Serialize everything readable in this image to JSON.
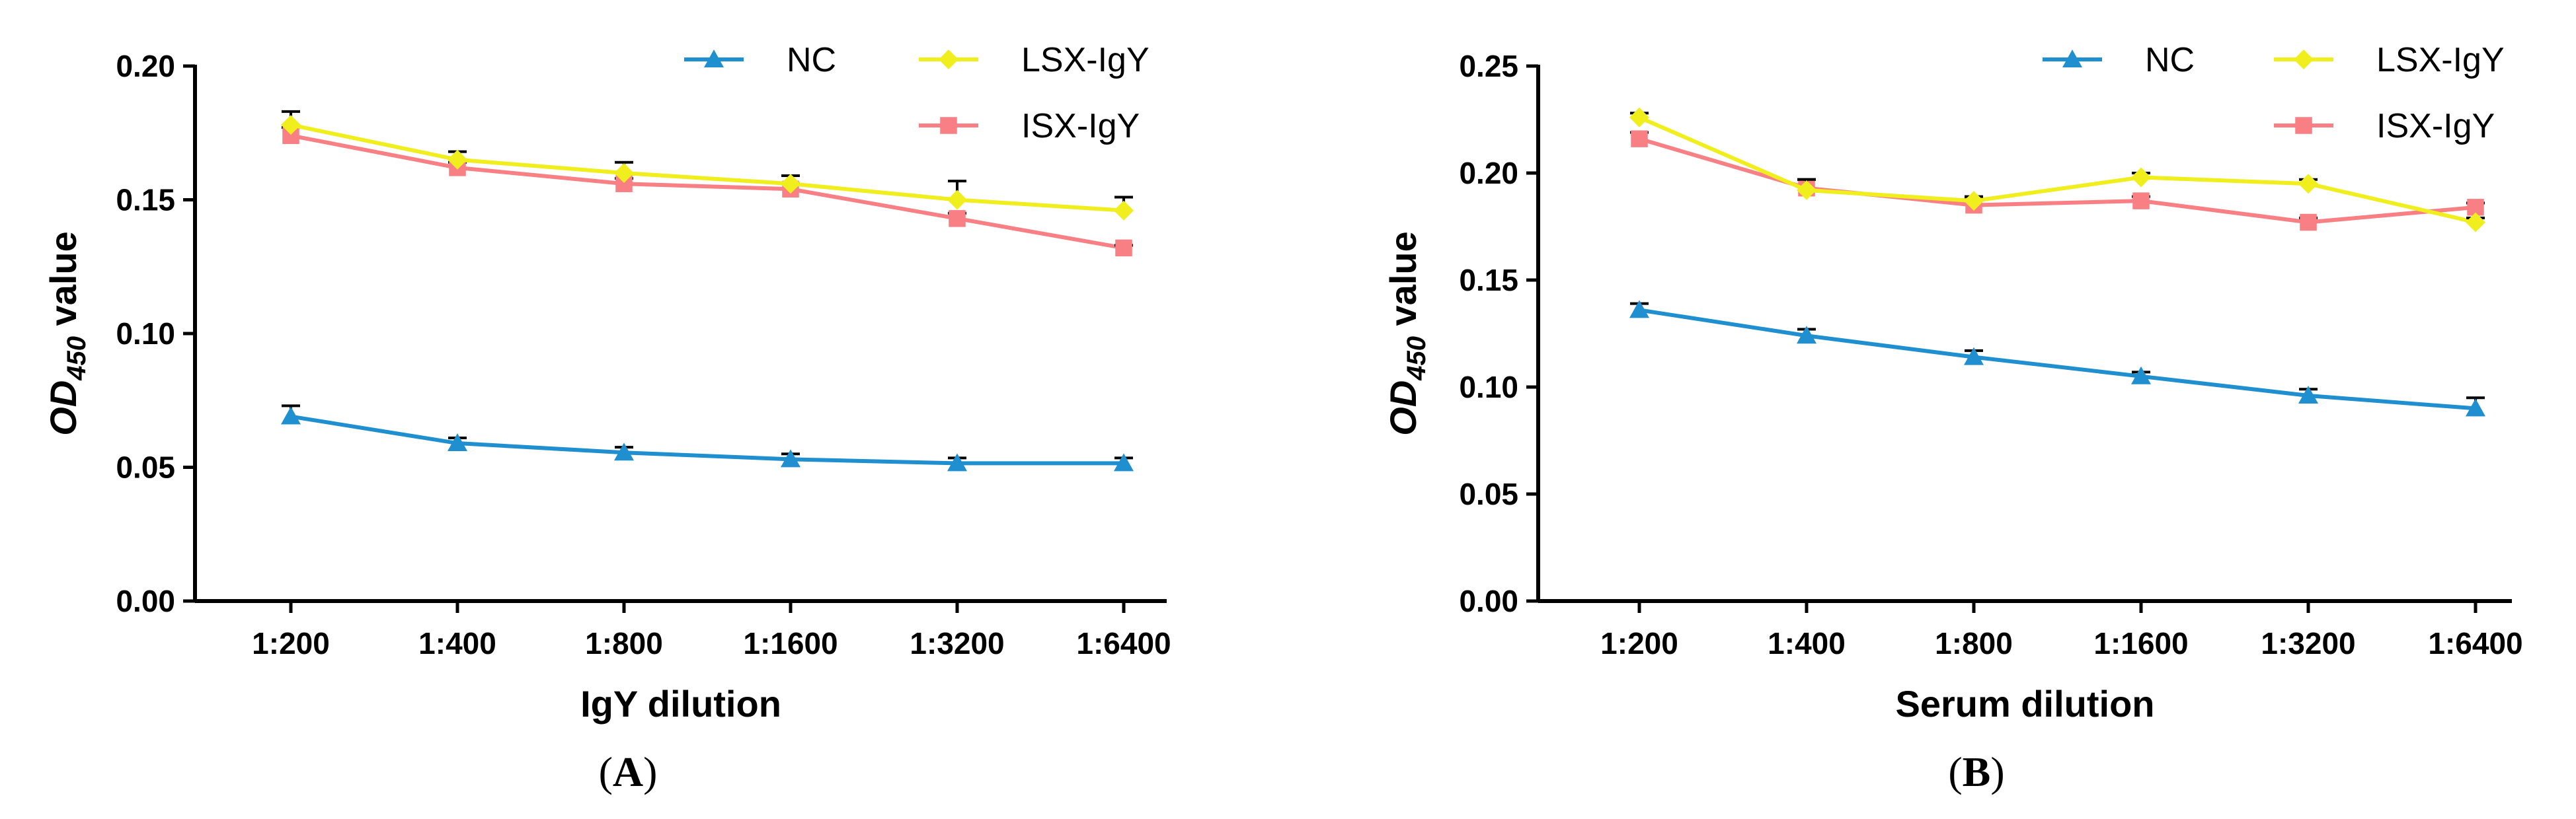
{
  "chart_data": [
    {
      "type": "line",
      "panel_label": "A",
      "categories": [
        "1:200",
        "1:400",
        "1:800",
        "1:1600",
        "1:3200",
        "1:6400"
      ],
      "xlabel": "IgY dilution",
      "ylabel_main": "OD",
      "ylabel_sub": "450",
      "ylabel_rest": " value",
      "ylim": [
        0,
        0.2
      ],
      "yticks": [
        0,
        0.05,
        0.1,
        0.15,
        0.2
      ],
      "ytick_labels": [
        "0.00",
        "0.05",
        "0.10",
        "0.15",
        "0.20"
      ],
      "legend_position": "top-right",
      "series": [
        {
          "name": "NC",
          "color": "#1f8fd0",
          "marker": "triangle",
          "values": [
            0.069,
            0.059,
            0.0555,
            0.053,
            0.0515,
            0.0515
          ],
          "errors": [
            0.004,
            0.002,
            0.002,
            0.002,
            0.002,
            0.002
          ]
        },
        {
          "name": "LSX-IgY",
          "color": "#f0ee1c",
          "marker": "diamond",
          "values": [
            0.178,
            0.165,
            0.16,
            0.156,
            0.15,
            0.146
          ],
          "errors": [
            0.005,
            0.003,
            0.004,
            0.003,
            0.007,
            0.005
          ]
        },
        {
          "name": "ISX-IgY",
          "color": "#f87f83",
          "marker": "square",
          "values": [
            0.174,
            0.162,
            0.156,
            0.154,
            0.143,
            0.132
          ],
          "errors": [
            0.003,
            0.002,
            0.002,
            0.002,
            0.002,
            0.001
          ]
        }
      ]
    },
    {
      "type": "line",
      "panel_label": "B",
      "categories": [
        "1:200",
        "1:400",
        "1:800",
        "1:1600",
        "1:3200",
        "1:6400"
      ],
      "xlabel": "Serum dilution",
      "ylabel_main": "OD",
      "ylabel_sub": "450",
      "ylabel_rest": " value",
      "ylim": [
        0,
        0.25
      ],
      "yticks": [
        0,
        0.05,
        0.1,
        0.15,
        0.2,
        0.25
      ],
      "ytick_labels": [
        "0.00",
        "0.05",
        "0.10",
        "0.15",
        "0.20",
        "0.25"
      ],
      "legend_position": "top-right",
      "series": [
        {
          "name": "NC",
          "color": "#1f8fd0",
          "marker": "triangle",
          "values": [
            0.136,
            0.124,
            0.114,
            0.105,
            0.096,
            0.09
          ],
          "errors": [
            0.003,
            0.003,
            0.003,
            0.002,
            0.003,
            0.005
          ]
        },
        {
          "name": "LSX-IgY",
          "color": "#f0ee1c",
          "marker": "diamond",
          "values": [
            0.226,
            0.192,
            0.187,
            0.198,
            0.195,
            0.177
          ],
          "errors": [
            0.002,
            0.005,
            0.002,
            0.002,
            0.002,
            0.002
          ]
        },
        {
          "name": "ISX-IgY",
          "color": "#f87f83",
          "marker": "square",
          "values": [
            0.216,
            0.193,
            0.185,
            0.187,
            0.177,
            0.184
          ],
          "errors": [
            0.003,
            0.004,
            0.003,
            0.002,
            0.002,
            0.002
          ]
        }
      ]
    }
  ]
}
